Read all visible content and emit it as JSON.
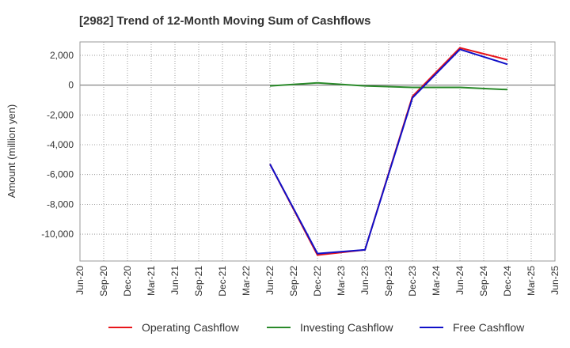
{
  "chart_data": {
    "type": "line",
    "title": "[2982]  Trend of 12-Month Moving Sum of Cashflows",
    "ylabel": "Amount (million yen)",
    "xlabel": "",
    "categories": [
      "Jun-20",
      "Sep-20",
      "Dec-20",
      "Mar-21",
      "Jun-21",
      "Sep-21",
      "Dec-21",
      "Mar-22",
      "Jun-22",
      "Sep-22",
      "Dec-22",
      "Mar-23",
      "Jun-23",
      "Sep-23",
      "Dec-23",
      "Mar-24",
      "Jun-24",
      "Sep-24",
      "Dec-24",
      "Mar-25",
      "Jun-25"
    ],
    "ylim": [
      -11800,
      2900
    ],
    "yticks": [
      2000,
      0,
      -2000,
      -4000,
      -6000,
      -8000,
      -10000
    ],
    "ytick_labels": [
      "2,000",
      "0",
      "-2,000",
      "-4,000",
      "-6,000",
      "-8,000",
      "-10,000"
    ],
    "grid": true,
    "legend_position": "bottom",
    "series": [
      {
        "name": "Operating Cashflow",
        "color": "#e8161b",
        "values": [
          null,
          null,
          null,
          null,
          null,
          null,
          null,
          null,
          -5300,
          null,
          -11400,
          null,
          -11050,
          null,
          -750,
          null,
          2500,
          null,
          1700,
          null,
          null
        ]
      },
      {
        "name": "Investing Cashflow",
        "color": "#2a8a2a",
        "values": [
          null,
          null,
          null,
          null,
          null,
          null,
          null,
          null,
          -50,
          null,
          150,
          null,
          -50,
          null,
          -150,
          null,
          -150,
          null,
          -300,
          null,
          null
        ]
      },
      {
        "name": "Free Cashflow",
        "color": "#1010c8",
        "values": [
          null,
          null,
          null,
          null,
          null,
          null,
          null,
          null,
          -5300,
          null,
          -11300,
          null,
          -11050,
          null,
          -850,
          null,
          2400,
          null,
          1400,
          null,
          null
        ]
      }
    ]
  }
}
